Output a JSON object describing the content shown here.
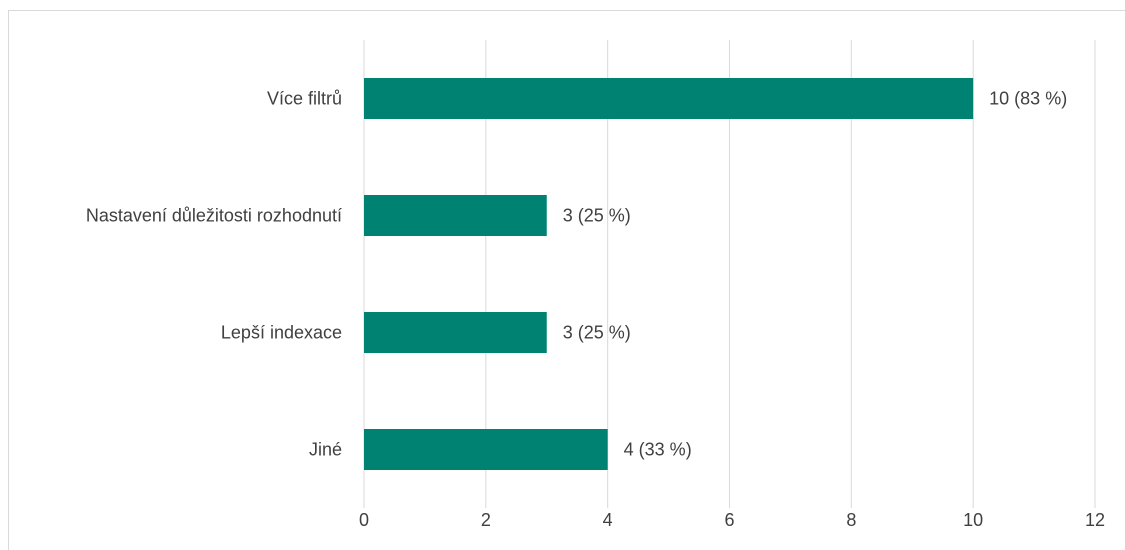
{
  "chart_data": {
    "type": "bar",
    "orientation": "horizontal",
    "title": "",
    "xlabel": "",
    "ylabel": "",
    "categories": [
      "Více filtrů",
      "Nastavení důležitosti rozhodnutí",
      "Lepší indexace",
      "Jiné"
    ],
    "values": [
      10,
      3,
      3,
      4
    ],
    "data_labels": [
      "10 (83 %)",
      "3 (25 %)",
      "3 (25 %)",
      "4 (33 %)"
    ],
    "xlim": [
      0,
      12
    ],
    "x_ticks": [
      "0",
      "2",
      "4",
      "6",
      "8",
      "10",
      "12"
    ],
    "grid": "vertical",
    "legend": "none",
    "bar_color": "#008272",
    "grid_color": "#d9d9d9"
  }
}
